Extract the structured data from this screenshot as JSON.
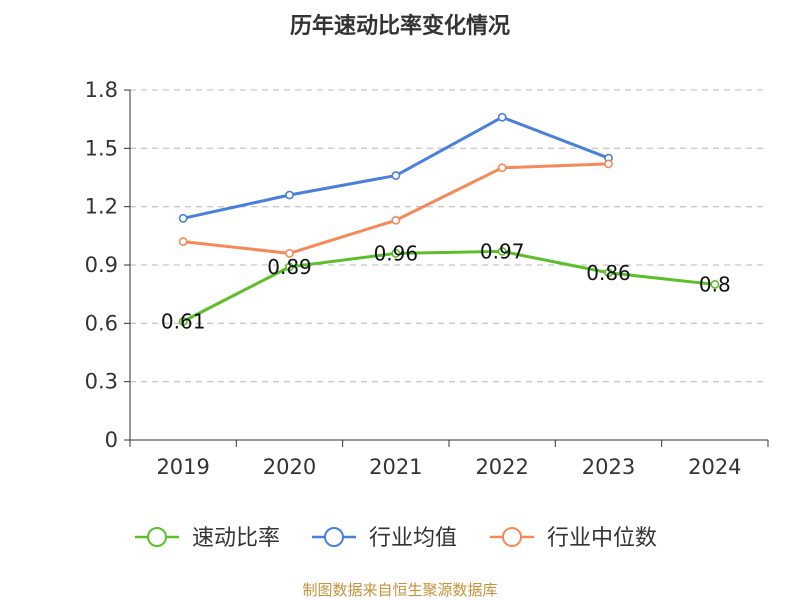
{
  "chart_data": {
    "type": "line",
    "title": "历年速动比率变化情况",
    "categories": [
      "2019",
      "2020",
      "2021",
      "2022",
      "2023",
      "2024"
    ],
    "ylim": [
      0,
      1.8
    ],
    "yticks": [
      "0",
      "0.3",
      "0.6",
      "0.9",
      "1.2",
      "1.5",
      "1.8"
    ],
    "grid": true,
    "legend_position": "bottom",
    "series": [
      {
        "name": "速动比率",
        "color": "#5cbf2a",
        "values": [
          0.61,
          0.89,
          0.96,
          0.97,
          0.86,
          0.8
        ],
        "labels": [
          "0.61",
          "0.89",
          "0.96",
          "0.97",
          "0.86",
          "0.8"
        ]
      },
      {
        "name": "行业均值",
        "color": "#4a7fdb",
        "values": [
          1.14,
          1.26,
          1.36,
          1.66,
          1.45,
          null
        ]
      },
      {
        "name": "行业中位数",
        "color": "#f5895a",
        "values": [
          1.02,
          0.96,
          1.13,
          1.4,
          1.42,
          null
        ]
      }
    ],
    "source": "制图数据来自恒生聚源数据库"
  }
}
